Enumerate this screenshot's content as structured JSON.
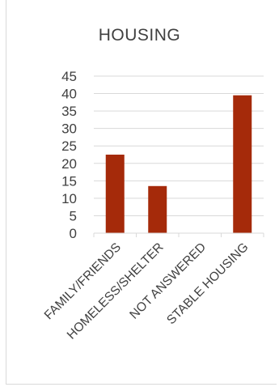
{
  "chart_data": {
    "type": "bar",
    "title": "HOUSING",
    "categories": [
      "FAMILY/FRIENDS",
      "HOMELESS/SHELTER",
      "NOT ANSWERED",
      "STABLE HOUSING"
    ],
    "values": [
      22.5,
      13.5,
      0,
      39.5
    ],
    "ylim": [
      0,
      45
    ],
    "yticks": [
      0,
      5,
      10,
      15,
      20,
      25,
      30,
      35,
      40,
      45
    ],
    "grid": true,
    "legend": "none",
    "bar_color": "#a52a0a",
    "xlabel": "",
    "ylabel": ""
  }
}
